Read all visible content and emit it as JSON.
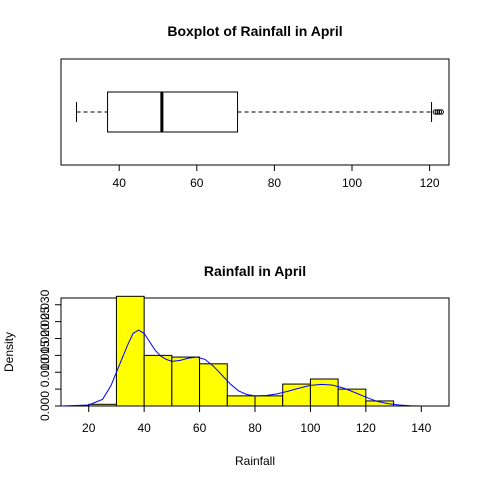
{
  "chart_data": [
    {
      "type": "boxplot",
      "title": "Boxplot of Rainfall in April",
      "orientation": "horizontal",
      "xlim": [
        25,
        125
      ],
      "xticks": [
        40,
        60,
        80,
        100,
        120
      ],
      "stats": {
        "whisker_low": 29,
        "q1": 37,
        "median": 51,
        "q3": 70.5,
        "whisker_high": 120.5
      },
      "outliers": [
        121.5,
        122,
        122.5,
        123
      ]
    },
    {
      "type": "histogram",
      "title": "Rainfall in April",
      "xlabel": "Rainfall",
      "ylabel": "Density",
      "xlim": [
        10,
        150
      ],
      "ylim": [
        0,
        0.032
      ],
      "xticks": [
        20,
        40,
        60,
        80,
        100,
        120,
        140
      ],
      "yticks": [
        0.0,
        0.005,
        0.01,
        0.015,
        0.02,
        0.025,
        0.03
      ],
      "ytick_labels": [
        "0.000",
        "",
        "0.010",
        "0.015",
        "0.020",
        "0.025",
        "0.030"
      ],
      "bar_color": "#ffff00",
      "bins": [
        {
          "from": 20,
          "to": 30,
          "density": 0.0005
        },
        {
          "from": 30,
          "to": 40,
          "density": 0.0325
        },
        {
          "from": 40,
          "to": 50,
          "density": 0.015
        },
        {
          "from": 50,
          "to": 60,
          "density": 0.0145
        },
        {
          "from": 60,
          "to": 70,
          "density": 0.0125
        },
        {
          "from": 70,
          "to": 80,
          "density": 0.003
        },
        {
          "from": 80,
          "to": 90,
          "density": 0.003
        },
        {
          "from": 90,
          "to": 100,
          "density": 0.0065
        },
        {
          "from": 100,
          "to": 110,
          "density": 0.008
        },
        {
          "from": 110,
          "to": 120,
          "density": 0.005
        },
        {
          "from": 120,
          "to": 130,
          "density": 0.0015
        }
      ],
      "density_curve": {
        "color": "#0000ff",
        "x": [
          10,
          20,
          25,
          28,
          31,
          34,
          36,
          38,
          40,
          42,
          44,
          46,
          48,
          50,
          53,
          56,
          59,
          62,
          65,
          68,
          71,
          74,
          77,
          80,
          84,
          88,
          92,
          96,
          100,
          104,
          108,
          112,
          116,
          120,
          124,
          128,
          132,
          136,
          140
        ],
        "y": [
          0.0,
          0.0003,
          0.002,
          0.006,
          0.012,
          0.018,
          0.0215,
          0.0225,
          0.0215,
          0.019,
          0.0165,
          0.0148,
          0.0138,
          0.0132,
          0.0135,
          0.0142,
          0.0145,
          0.0138,
          0.0118,
          0.0092,
          0.0066,
          0.0045,
          0.0034,
          0.003,
          0.0031,
          0.0036,
          0.0044,
          0.0053,
          0.0061,
          0.0064,
          0.0062,
          0.0053,
          0.004,
          0.0026,
          0.0014,
          0.0007,
          0.0003,
          0.0001,
          0.0
        ]
      }
    }
  ]
}
